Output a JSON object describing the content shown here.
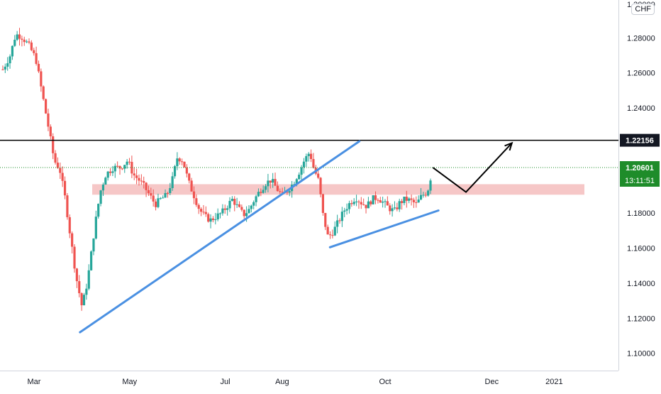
{
  "instrument": {
    "currency": "CHF",
    "current_price_label": "1.20601",
    "countdown": "13:11:51",
    "horizontal_level_label": "1.22156"
  },
  "colors": {
    "up": "#26a69a",
    "down": "#ef5350",
    "trendline": "#4a90e2",
    "level": "#000000",
    "zone": "#f3b4b4",
    "price_tag": "#1e8c2a",
    "axis_text": "#131722"
  },
  "chart_data": {
    "type": "candlestick",
    "ylim": [
      1.095,
      1.3
    ],
    "y_ticks": [
      {
        "value": 1.28,
        "label": "1.28000"
      },
      {
        "value": 1.26,
        "label": "1.26000"
      },
      {
        "value": 1.24,
        "label": "1.24000"
      },
      {
        "value": 1.2,
        "label": "1.20000"
      },
      {
        "value": 1.18,
        "label": "1.18000"
      },
      {
        "value": 1.16,
        "label": "1.16000"
      },
      {
        "value": 1.14,
        "label": "1.14000"
      },
      {
        "value": 1.12,
        "label": "1.12000"
      },
      {
        "value": 1.1,
        "label": "1.10000"
      }
    ],
    "x_range_days": [
      -70,
      130
    ],
    "x_ticks": [
      {
        "day": -55,
        "label": "Mar"
      },
      {
        "day": -3,
        "label": "May"
      },
      {
        "day": 49,
        "label": "Jul"
      },
      {
        "day": 80,
        "label": "Aug"
      },
      {
        "day": 136,
        "label": "Oct"
      },
      {
        "day": 194,
        "label": "Dec"
      },
      {
        "day": 228,
        "label": "2021"
      }
    ],
    "candles_ohlc": [],
    "price_path": [
      [
        -72,
        1.262
      ],
      [
        -68,
        1.27
      ],
      [
        -65,
        1.282
      ],
      [
        -62,
        1.281
      ],
      [
        -58,
        1.276
      ],
      [
        -54,
        1.268
      ],
      [
        -50,
        1.245
      ],
      [
        -47,
        1.228
      ],
      [
        -44,
        1.21
      ],
      [
        -41,
        1.205
      ],
      [
        -38,
        1.188
      ],
      [
        -35,
        1.165
      ],
      [
        -32,
        1.143
      ],
      [
        -29,
        1.127
      ],
      [
        -27,
        1.135
      ],
      [
        -25,
        1.148
      ],
      [
        -22,
        1.172
      ],
      [
        -19,
        1.192
      ],
      [
        -16,
        1.202
      ],
      [
        -12,
        1.206
      ],
      [
        -8,
        1.206
      ],
      [
        -4,
        1.21
      ],
      [
        -1,
        1.202
      ],
      [
        2,
        1.199
      ],
      [
        5,
        1.195
      ],
      [
        8,
        1.19
      ],
      [
        11,
        1.185
      ],
      [
        14,
        1.188
      ],
      [
        17,
        1.19
      ],
      [
        20,
        1.198
      ],
      [
        23,
        1.212
      ],
      [
        26,
        1.21
      ],
      [
        29,
        1.198
      ],
      [
        32,
        1.19
      ],
      [
        35,
        1.182
      ],
      [
        38,
        1.178
      ],
      [
        41,
        1.176
      ],
      [
        44,
        1.178
      ],
      [
        47,
        1.18
      ],
      [
        50,
        1.184
      ],
      [
        53,
        1.188
      ],
      [
        56,
        1.183
      ],
      [
        59,
        1.179
      ],
      [
        62,
        1.182
      ],
      [
        65,
        1.188
      ],
      [
        68,
        1.193
      ],
      [
        71,
        1.197
      ],
      [
        74,
        1.199
      ],
      [
        77,
        1.194
      ],
      [
        80,
        1.19
      ],
      [
        83,
        1.193
      ],
      [
        86,
        1.197
      ],
      [
        89,
        1.203
      ],
      [
        92,
        1.21
      ],
      [
        95,
        1.215
      ],
      [
        97,
        1.206
      ],
      [
        100,
        1.198
      ],
      [
        102,
        1.18
      ],
      [
        105,
        1.166
      ],
      [
        108,
        1.17
      ],
      [
        111,
        1.176
      ],
      [
        114,
        1.182
      ],
      [
        117,
        1.186
      ],
      [
        120,
        1.189
      ],
      [
        123,
        1.186
      ],
      [
        126,
        1.184
      ],
      [
        129,
        1.188
      ],
      [
        132,
        1.189
      ],
      [
        135,
        1.186
      ],
      [
        138,
        1.183
      ],
      [
        141,
        1.181
      ],
      [
        144,
        1.186
      ],
      [
        147,
        1.188
      ],
      [
        150,
        1.187
      ],
      [
        153,
        1.185
      ],
      [
        156,
        1.19
      ],
      [
        159,
        1.192
      ],
      [
        162,
        1.206
      ]
    ],
    "annotations": {
      "horizontal_level": 1.22156,
      "current_price": 1.20601,
      "zone": [
        1.1905,
        1.1965
      ],
      "rising_trendline": [
        [
          -30,
          1.112
        ],
        [
          122,
          1.221
        ]
      ],
      "pennant_support": [
        [
          106,
          1.1605
        ],
        [
          165,
          1.1815
        ]
      ],
      "projection": [
        [
          162,
          1.206
        ],
        [
          180,
          1.192
        ],
        [
          205,
          1.22
        ]
      ]
    }
  }
}
